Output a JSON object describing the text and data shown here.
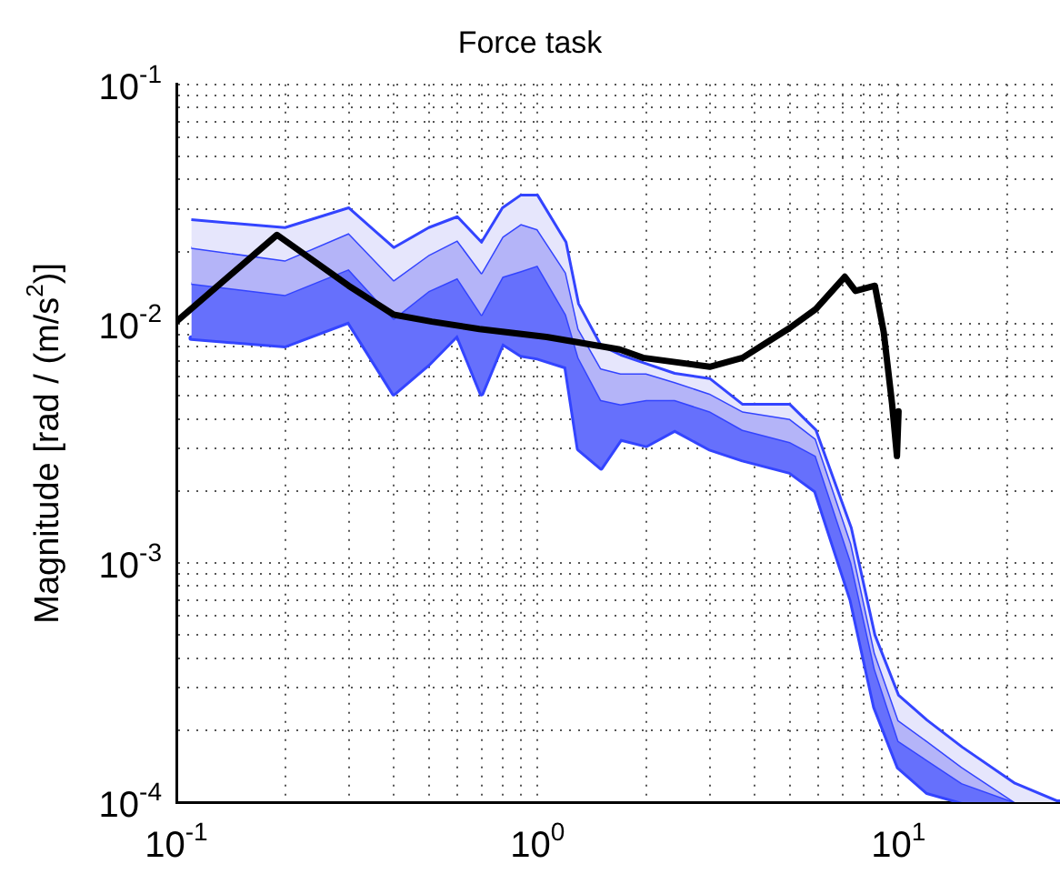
{
  "chart_data": {
    "type": "area",
    "title": "Force task",
    "ylabel": "Magnitude [rad / (m/s$^{2}$)]",
    "log": "xy",
    "grid": true,
    "legend": false,
    "x": [
      0.11,
      0.2,
      0.3,
      0.4,
      0.5,
      0.6,
      0.7,
      0.8,
      0.9,
      1.0,
      1.2,
      1.3,
      1.5,
      1.7,
      2,
      2.4,
      3,
      3.7,
      5,
      5.9,
      7.4,
      8.6,
      10,
      12,
      15,
      21,
      28
    ],
    "xlim": [
      0.1,
      28
    ],
    "xticks": [
      {
        "value": 0.1,
        "label": "10$^{-1}$"
      },
      {
        "value": 0.2,
        "label": null
      },
      {
        "value": 0.3,
        "label": null
      },
      {
        "value": 0.4,
        "label": null
      },
      {
        "value": 0.5,
        "label": null
      },
      {
        "value": 0.6,
        "label": null
      },
      {
        "value": 0.7,
        "label": null
      },
      {
        "value": 0.8,
        "label": null
      },
      {
        "value": 0.9,
        "label": null
      },
      {
        "value": 1,
        "label": "10$^{0}$"
      },
      {
        "value": 2,
        "label": null
      },
      {
        "value": 3,
        "label": null
      },
      {
        "value": 4,
        "label": null
      },
      {
        "value": 5,
        "label": null
      },
      {
        "value": 6,
        "label": null
      },
      {
        "value": 7,
        "label": null
      },
      {
        "value": 8,
        "label": null
      },
      {
        "value": 9,
        "label": null
      },
      {
        "value": 10,
        "label": "10$^{1}$"
      },
      {
        "value": 20,
        "label": null
      }
    ],
    "ylim": [
      0.0001,
      0.1
    ],
    "yticks": [
      {
        "value": 0.0001,
        "label": "10$^{-4}$"
      },
      {
        "value": 0.0002,
        "label": null
      },
      {
        "value": 0.0003,
        "label": null
      },
      {
        "value": 0.0004,
        "label": null
      },
      {
        "value": 0.0005,
        "label": null
      },
      {
        "value": 0.0006,
        "label": null
      },
      {
        "value": 0.0007,
        "label": null
      },
      {
        "value": 0.0008,
        "label": null
      },
      {
        "value": 0.0009,
        "label": null
      },
      {
        "value": 0.001,
        "label": "10$^{-3}$"
      },
      {
        "value": 0.002,
        "label": null
      },
      {
        "value": 0.003,
        "label": null
      },
      {
        "value": 0.004,
        "label": null
      },
      {
        "value": 0.005,
        "label": null
      },
      {
        "value": 0.006,
        "label": null
      },
      {
        "value": 0.007,
        "label": null
      },
      {
        "value": 0.008,
        "label": null
      },
      {
        "value": 0.009,
        "label": null
      },
      {
        "value": 0.01,
        "label": "10$^{-2}$"
      },
      {
        "value": 0.02,
        "label": null
      },
      {
        "value": 0.03,
        "label": null
      },
      {
        "value": 0.04,
        "label": null
      },
      {
        "value": 0.05,
        "label": null
      },
      {
        "value": 0.06,
        "label": null
      },
      {
        "value": 0.07,
        "label": null
      },
      {
        "value": 0.08,
        "label": null
      },
      {
        "value": 0.09,
        "label": null
      },
      {
        "value": 0.1,
        "label": "10$^{-1}$"
      }
    ],
    "series": [
      {
        "color": "#e6e6fc",
        "values": [
          0.0272,
          0.0252,
          0.0305,
          0.0208,
          0.0252,
          0.028,
          0.0219,
          0.0305,
          0.0345,
          0.0345,
          0.0219,
          0.0121,
          0.0081,
          0.0074,
          0.0068,
          0.0062,
          0.0059,
          0.0046,
          0.0046,
          0.0036,
          0.0014,
          0.0005,
          0.00028,
          0.00022,
          0.00017,
          0.00012,
          0.0001
        ]
      },
      {
        "color": "#b4b4f8",
        "values": [
          0.0208,
          0.0184,
          0.0239,
          0.0152,
          0.0194,
          0.0223,
          0.0163,
          0.0231,
          0.0261,
          0.0248,
          0.0163,
          0.0095,
          0.0065,
          0.0062,
          0.0062,
          0.0057,
          0.0051,
          0.0043,
          0.004,
          0.0033,
          0.0012,
          0.00042,
          0.00022,
          0.00018,
          0.00014,
          0.0001,
          0.0001
        ]
      },
      {
        "color": "#6670fc",
        "values": [
          0.0147,
          0.0132,
          0.0169,
          0.0105,
          0.0137,
          0.0155,
          0.0109,
          0.0157,
          0.0166,
          0.0175,
          0.0109,
          0.0072,
          0.0048,
          0.0046,
          0.0048,
          0.0048,
          0.0043,
          0.0036,
          0.0032,
          0.0028,
          0.001,
          0.00036,
          0.00018,
          0.00015,
          0.00012,
          0.0001,
          0.0001
        ]
      },
      {
        "type": "line",
        "color": "#3344ff",
        "values": [
          0.0087,
          0.0081,
          0.0102,
          0.0051,
          0.0068,
          0.009,
          0.0051,
          0.0083,
          0.0074,
          0.0072,
          0.0066,
          0.003,
          0.0025,
          0.0033,
          0.0031,
          0.0036,
          0.003,
          0.0027,
          0.0024,
          0.002,
          0.0007,
          0.00025,
          0.00014,
          0.00011,
          0.0001,
          0.0001,
          0.0001
        ]
      },
      {
        "type": "line",
        "color": "#000000",
        "x": [
          0.1,
          0.19,
          0.3,
          0.4,
          0.51,
          0.69,
          1.06,
          1.69,
          1.96,
          3.0,
          3.7,
          5.0,
          5.9,
          7.1,
          7.6,
          8.6,
          9.1,
          9.6,
          9.9,
          10
        ],
        "values": [
          0.0102,
          0.0235,
          0.0144,
          0.0109,
          0.0102,
          0.0095,
          0.0088,
          0.0078,
          0.0072,
          0.0066,
          0.0072,
          0.0096,
          0.0115,
          0.0157,
          0.0137,
          0.0144,
          0.0092,
          0.0046,
          0.0028,
          0.0043
        ]
      }
    ]
  }
}
